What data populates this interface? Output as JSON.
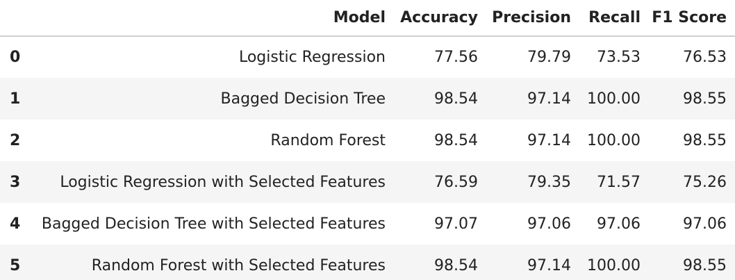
{
  "table": {
    "columns": [
      "",
      "Model",
      "Accuracy",
      "Precision",
      "Recall",
      "F1 Score"
    ],
    "rows": [
      {
        "index": "0",
        "model": "Logistic Regression",
        "accuracy": "77.56",
        "precision": "79.79",
        "recall": "73.53",
        "f1": "76.53"
      },
      {
        "index": "1",
        "model": "Bagged Decision Tree",
        "accuracy": "98.54",
        "precision": "97.14",
        "recall": "100.00",
        "f1": "98.55"
      },
      {
        "index": "2",
        "model": "Random Forest",
        "accuracy": "98.54",
        "precision": "97.14",
        "recall": "100.00",
        "f1": "98.55"
      },
      {
        "index": "3",
        "model": "Logistic Regression with Selected Features",
        "accuracy": "76.59",
        "precision": "79.35",
        "recall": "71.57",
        "f1": "75.26"
      },
      {
        "index": "4",
        "model": "Bagged Decision Tree with Selected Features",
        "accuracy": "97.07",
        "precision": "97.06",
        "recall": "97.06",
        "f1": "97.06"
      },
      {
        "index": "5",
        "model": "Random Forest with Selected Features",
        "accuracy": "98.54",
        "precision": "97.14",
        "recall": "100.00",
        "f1": "98.55"
      }
    ]
  }
}
